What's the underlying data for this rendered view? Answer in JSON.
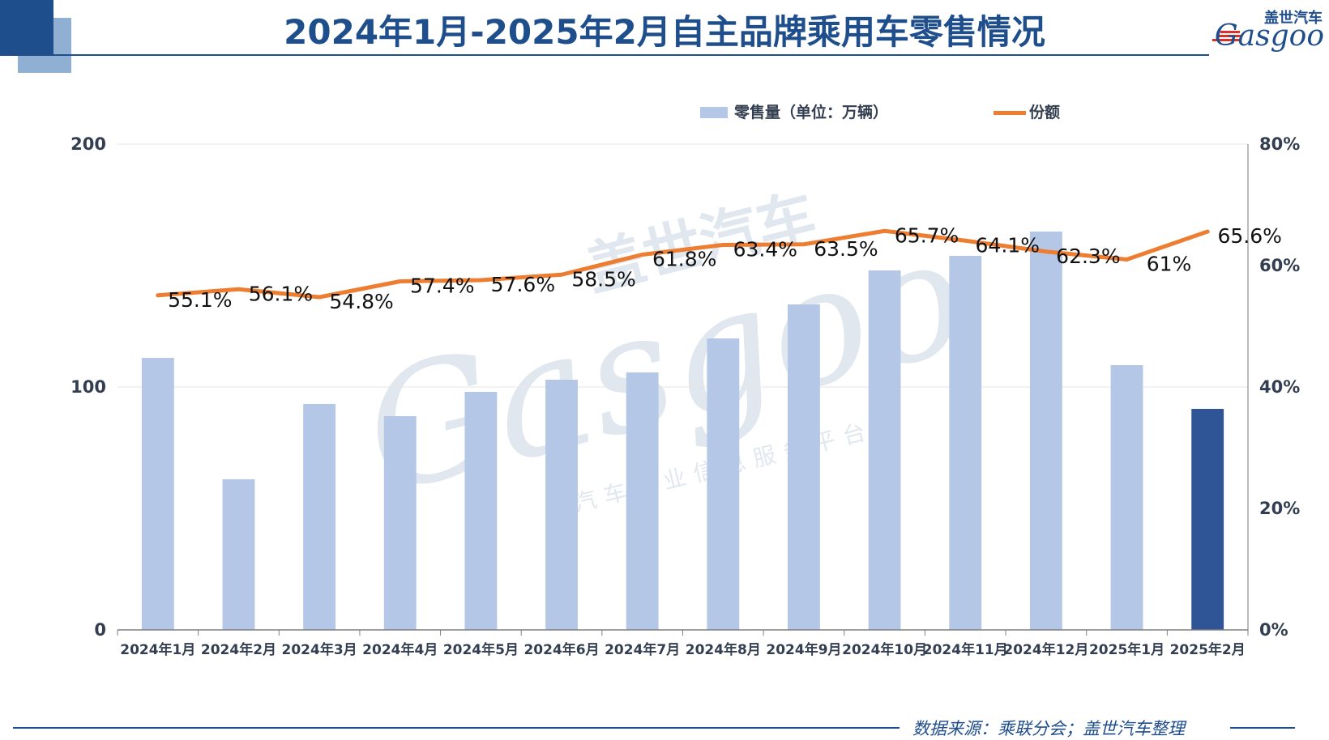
{
  "title": "2024年1月-2025年2月自主品牌乘用车零售情况",
  "logo": {
    "cn": "盖世汽车",
    "latin": "Gasgoo"
  },
  "watermark": {
    "cn": "盖世汽车",
    "latin": "Gasgoo",
    "sub": "汽车产业信息服务平台"
  },
  "source": "数据来源：乘联分会；盖世汽车整理",
  "colors": {
    "bar": "#b4c7e7",
    "bar_highlight": "#2f5597",
    "line": "#ed7d31",
    "title": "#1f4e8c",
    "axis_text": "#333f50"
  },
  "chart_data": {
    "type": "bar",
    "categories": [
      "2024年1月",
      "2024年2月",
      "2024年3月",
      "2024年4月",
      "2024年5月",
      "2024年6月",
      "2024年7月",
      "2024年8月",
      "2024年9月",
      "2024年10月",
      "2024年11月",
      "2024年12月",
      "2025年1月",
      "2025年2月"
    ],
    "series": [
      {
        "name": "零售量（单位：万辆）",
        "type": "bar",
        "axis": "left",
        "values": [
          112,
          62,
          93,
          88,
          98,
          103,
          106,
          120,
          134,
          148,
          154,
          164,
          109,
          91
        ],
        "highlight_index": 13
      },
      {
        "name": "份额",
        "type": "line",
        "axis": "right",
        "values": [
          55.1,
          56.1,
          54.8,
          57.4,
          57.6,
          58.5,
          61.8,
          63.4,
          63.5,
          65.7,
          64.1,
          62.3,
          61,
          65.6
        ],
        "labels": [
          "55.1%",
          "56.1%",
          "54.8%",
          "57.4%",
          "57.6%",
          "58.5%",
          "61.8%",
          "63.4%",
          "63.5%",
          "65.7%",
          "64.1%",
          "62.3%",
          "61%",
          "65.6%"
        ]
      }
    ],
    "y_left": {
      "ticks": [
        "0",
        "100",
        "200"
      ],
      "min": 0,
      "max": 200
    },
    "y_right": {
      "ticks": [
        "0%",
        "20%",
        "40%",
        "60%",
        "80%"
      ],
      "min": 0,
      "max": 80
    },
    "grid": true,
    "legend_position": "top-right"
  }
}
